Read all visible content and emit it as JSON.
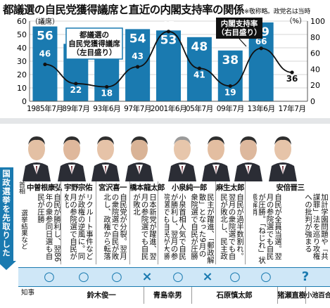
{
  "title": "都議選の自民党獲得議席と直近の内閣支持率の関係",
  "title_note": "※敬称略。政党名は当時",
  "chart_data": {
    "type": "bar",
    "categories": [
      "1985年7月",
      "89年7月",
      "93年6月",
      "97年7月",
      "2001年6月",
      "05年7月",
      "09年7月",
      "13年6月",
      "17年7月"
    ],
    "series": [
      {
        "name": "都議選の自民党獲得議席（左目盛り）",
        "type": "bar",
        "values": [
          56,
          43,
          44,
          54,
          53,
          48,
          38,
          59,
          null
        ]
      },
      {
        "name": "内閣支持率（右目盛り）",
        "type": "line",
        "values": [
          46,
          22,
          18,
          43,
          87,
          41,
          19,
          66,
          36
        ]
      }
    ],
    "left_axis": {
      "label": "（議席）",
      "range": [
        0,
        60
      ],
      "ticks": [
        0,
        10,
        20,
        30,
        40,
        50,
        60
      ]
    },
    "right_axis": {
      "label": "（%）",
      "range": [
        0,
        100
      ],
      "ticks": [
        0,
        20,
        40,
        60,
        80,
        100
      ]
    },
    "legend_bar": [
      "都議選の",
      "自民党獲得議席",
      "（左目盛り）"
    ],
    "legend_line": [
      "内閣支持率",
      "（右目盛り）"
    ],
    "colors": {
      "bar": "#1a7ab0",
      "line": "#111111",
      "legend_line_box": "#111111"
    }
  },
  "table": {
    "section_label": "国政選挙を先取りしたか",
    "row_pm": "首相",
    "row_note": "選挙結果など",
    "row_gov": "知事",
    "prime_ministers": [
      "中曽根康弘",
      "宇野宗佑",
      "宮沢喜一",
      "橋本龍太郎",
      "小泉純一郎",
      "麻生太郎",
      "安倍晋三"
    ],
    "notes": [
      "自民が勝利し、翌86年の衆参同日選も自民が圧勝",
      "リクルート事件などが政権の逆風に。同月の参院選で自民が敗北",
      "自民党が分裂。翌月の衆院選で自民が敗北し、政権から転落",
      "日本新党が躍進、翌月の参院選でも自民が敗北",
      "小泉首相人気で自民が勝利し、翌月の参院選でも自民が大勝",
      "民主が躍進、「郵政解散」となった9月の衆院選で自民が圧勝",
      "自民が過半数割れ。翌月の衆院選でも自民が敗北し、民主政権が誕生",
      "自民が全員当選。翌月の参院選でも自民が圧勝。「ねじれ」状態解消",
      "加計学園問題や「共謀罪」法を巡り攻権への批判が強まる"
    ],
    "results": [
      "○",
      "○",
      "○",
      "×",
      "○",
      "×",
      "○",
      "○",
      "?"
    ],
    "governors": [
      "鈴木俊一",
      "青島幸男",
      "石原慎太郎",
      "猪瀬直樹",
      "小池百合子"
    ]
  }
}
